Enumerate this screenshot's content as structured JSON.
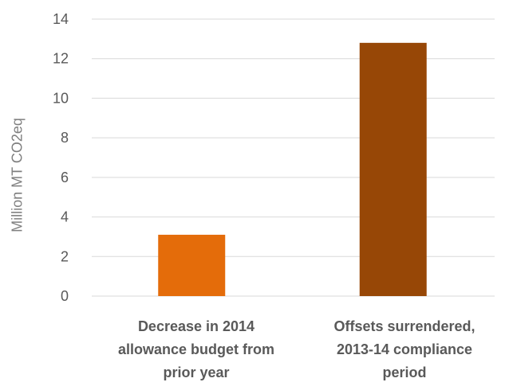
{
  "chart_data": {
    "type": "bar",
    "categories": [
      "Decrease in 2014 allowance budget from prior year",
      "Offsets surrendered, 2013-14 compliance period"
    ],
    "category_lines": [
      [
        "Decrease in 2014",
        "allowance budget from",
        "prior year"
      ],
      [
        "Offsets surrendered,",
        "2013-14 compliance",
        "period"
      ]
    ],
    "values": [
      3.1,
      12.8
    ],
    "colors": [
      "#e46c0a",
      "#974706"
    ],
    "ylabel": "Million MT CO2eq",
    "xlabel": "",
    "title": "",
    "ylim": [
      0,
      14
    ],
    "yticks": [
      0,
      2,
      4,
      6,
      8,
      10,
      12,
      14
    ],
    "grid": true,
    "legend": "none"
  }
}
